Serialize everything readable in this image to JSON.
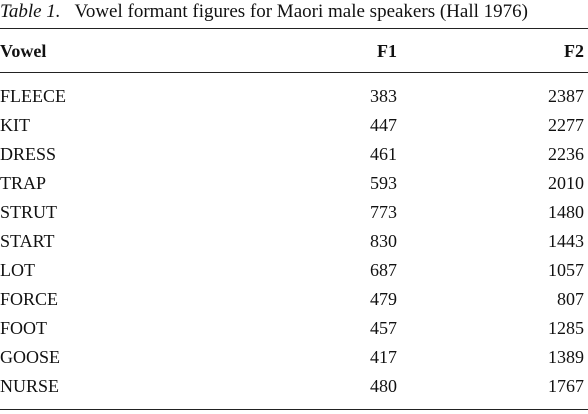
{
  "caption": {
    "label": "Table 1.",
    "text": "Vowel formant figures for Maori male speakers (Hall 1976)"
  },
  "table": {
    "headers": {
      "vowel": "Vowel",
      "f1": "F1",
      "f2": "F2"
    },
    "rows": [
      {
        "vowel": "FLEECE",
        "f1": "383",
        "f2": "2387"
      },
      {
        "vowel": "KIT",
        "f1": "447",
        "f2": "2277"
      },
      {
        "vowel": "DRESS",
        "f1": "461",
        "f2": "2236"
      },
      {
        "vowel": "TRAP",
        "f1": "593",
        "f2": "2010"
      },
      {
        "vowel": "STRUT",
        "f1": "773",
        "f2": "1480"
      },
      {
        "vowel": "START",
        "f1": "830",
        "f2": "1443"
      },
      {
        "vowel": "LOT",
        "f1": "687",
        "f2": "1057"
      },
      {
        "vowel": "FORCE",
        "f1": "479",
        "f2": "807"
      },
      {
        "vowel": "FOOT",
        "f1": "457",
        "f2": "1285"
      },
      {
        "vowel": "GOOSE",
        "f1": "417",
        "f2": "1389"
      },
      {
        "vowel": "NURSE",
        "f1": "480",
        "f2": "1767"
      }
    ]
  }
}
